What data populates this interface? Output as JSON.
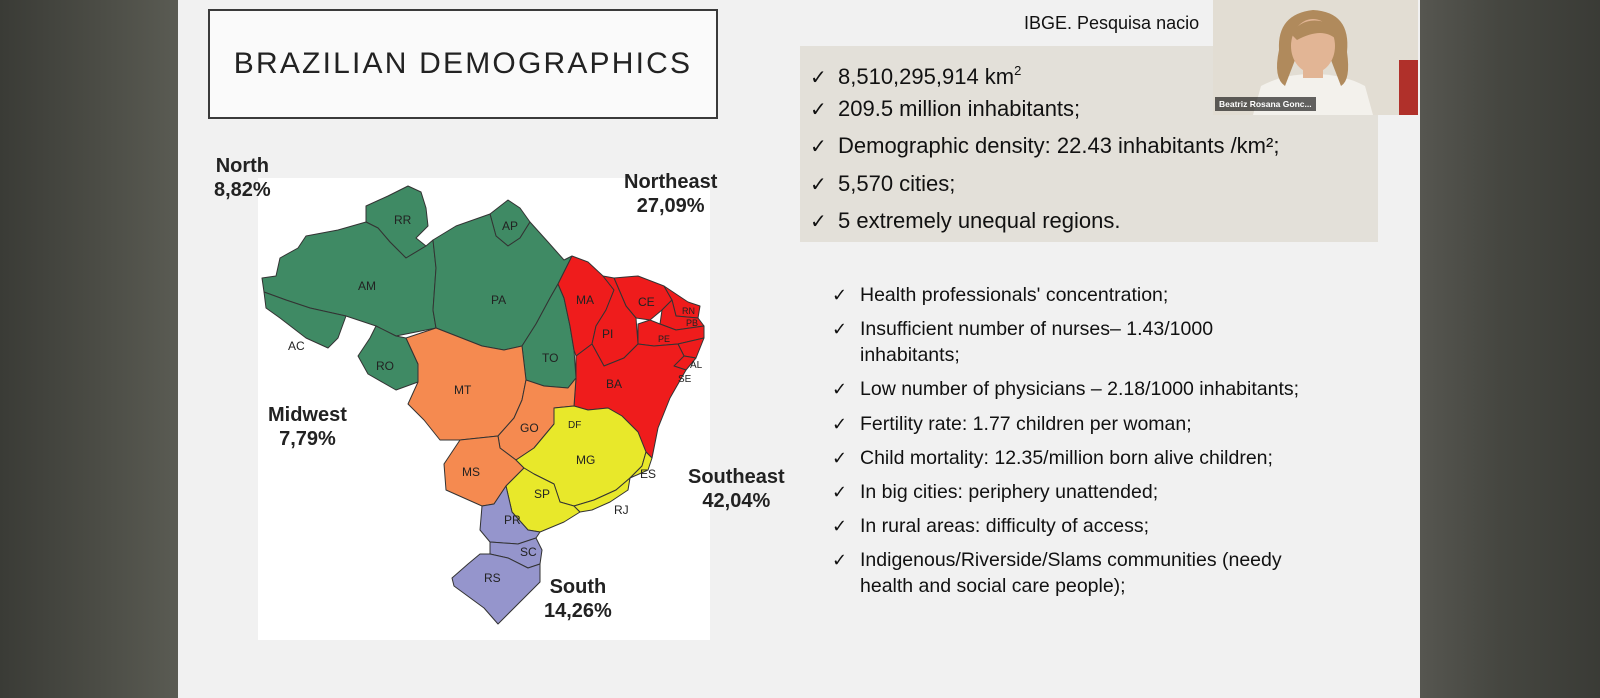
{
  "slide": {
    "title": "BRAZILIAN DEMOGRAPHICS",
    "source": "IBGE. Pesquisa nacio",
    "facts": [
      {
        "text": "8,510,295,914 km",
        "sup": "2"
      },
      {
        "text": "209.5 million inhabitants;"
      },
      {
        "text": "Demographic density: 22.43  inhabitants /km²;"
      },
      {
        "text": "5,570 cities;"
      },
      {
        "text": "5 extremely unequal regions."
      }
    ],
    "issues": [
      "Health professionals' concentration;",
      "Insufficient number of nurses– 1.43/1000",
      "inhabitants;",
      "Low number of physicians – 2.18/1000 inhabitants;",
      "Fertility rate: 1.77 children per woman;",
      "Child mortality: 12.35/million born alive children;",
      "In big cities: periphery unattended;",
      "In rural areas: difficulty of access;",
      "Indigenous/Riverside/Slams communities (needy",
      "health and social care people);"
    ],
    "check_glyph": "✓"
  },
  "map": {
    "regions": {
      "north": {
        "name": "North",
        "pct": "8,82%",
        "color": "#3f8a64"
      },
      "northeast": {
        "name": "Northeast",
        "pct": "27,09%",
        "color": "#ef1c1c"
      },
      "midwest": {
        "name": "Midwest",
        "pct": "7,79%",
        "color": "#f58a50"
      },
      "southeast": {
        "name": "Southeast",
        "pct": "42,04%",
        "color": "#e8e82a"
      },
      "south": {
        "name": "South",
        "pct": "14,26%",
        "color": "#9595cc"
      }
    },
    "states": {
      "RR": "RR",
      "AP": "AP",
      "AM": "AM",
      "PA": "PA",
      "AC": "AC",
      "RO": "RO",
      "TO": "TO",
      "MA": "MA",
      "CE": "CE",
      "PI": "PI",
      "RN": "RN",
      "PB": "PB",
      "PE": "PE",
      "AL": "AL",
      "SE": "SE",
      "BA": "BA",
      "MT": "MT",
      "GO": "GO",
      "DF": "DF",
      "MS": "MS",
      "MG": "MG",
      "ES": "ES",
      "SP": "SP",
      "RJ": "RJ",
      "PR": "PR",
      "SC": "SC",
      "RS": "RS"
    }
  },
  "video": {
    "participant_name": "Beatriz Rosana Gonc..."
  }
}
